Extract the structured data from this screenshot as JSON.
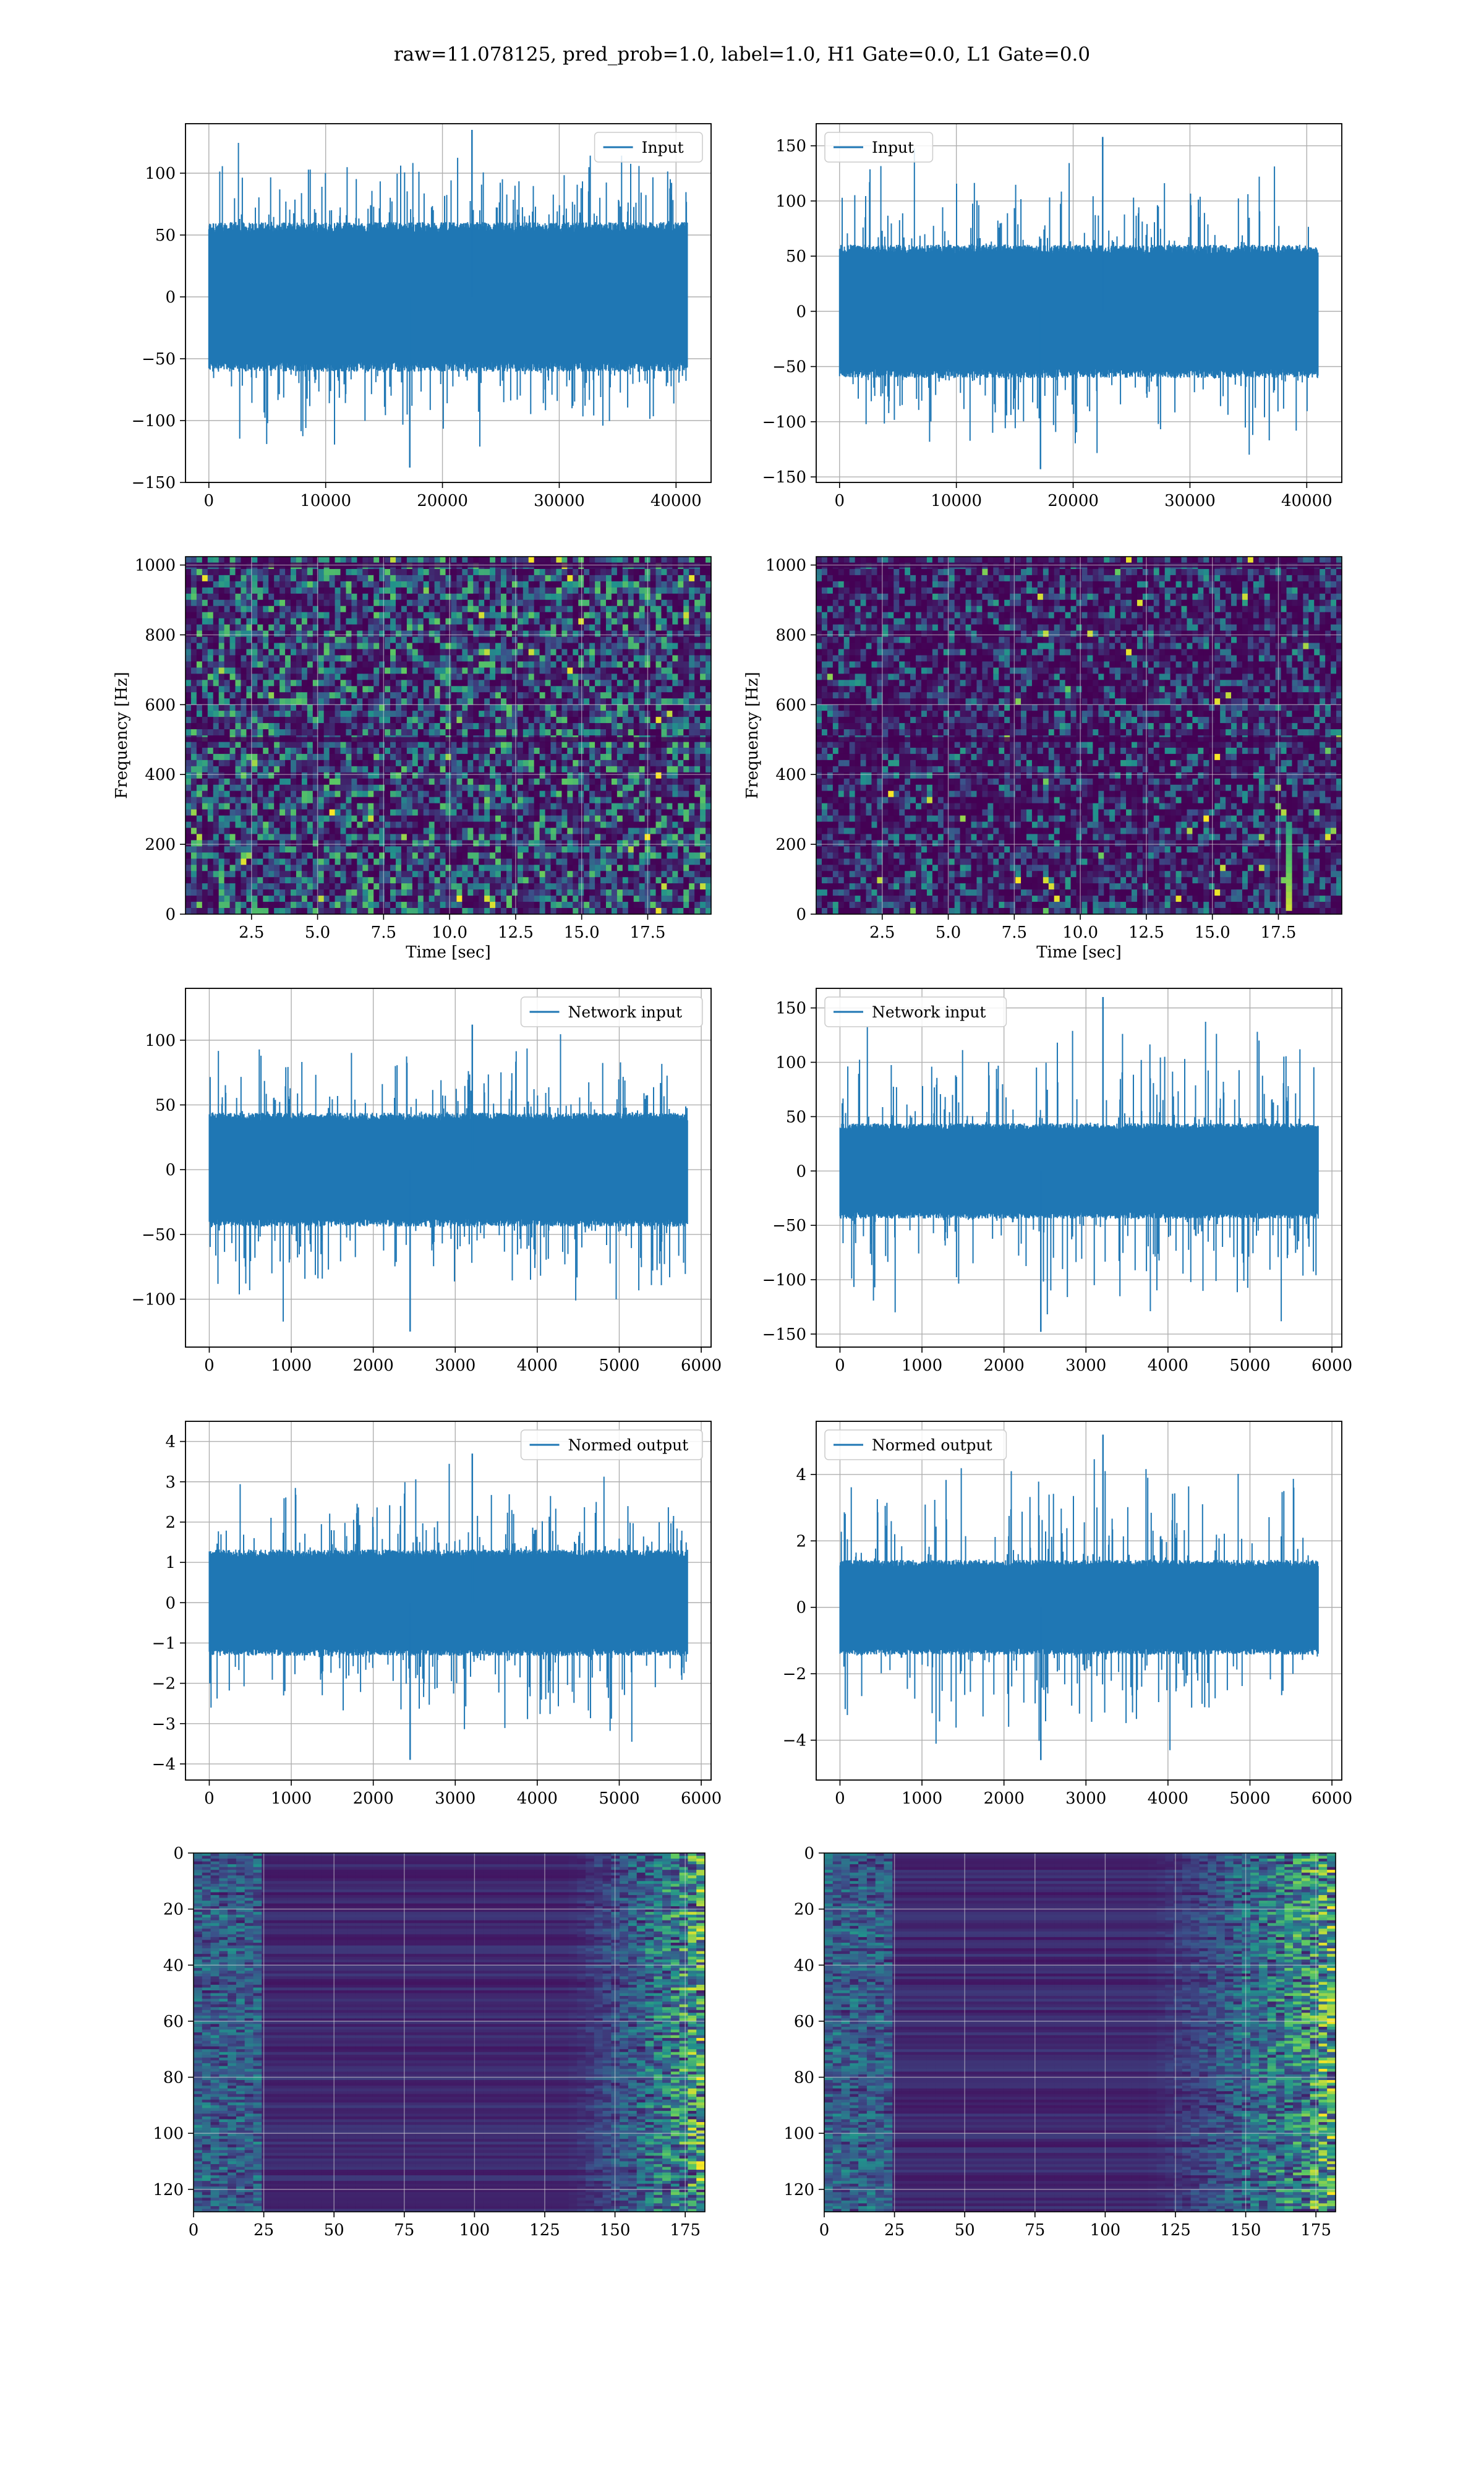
{
  "figure": {
    "suptitle": "raw=11.078125, pred_prob=1.0, label=1.0, H1 Gate=0.0, L1 Gate=0.0"
  },
  "colors": {
    "line": "#1f77b4",
    "grid": "#b0b0b0",
    "viridis_low": "#440154",
    "viridis_mid": "#21918c",
    "viridis_high": "#fde725"
  },
  "chart_data": [
    {
      "id": "input_h1",
      "type": "line",
      "title": "",
      "series": [
        {
          "name": "Input"
        }
      ],
      "legend": "top-right",
      "x": {
        "min": 0,
        "max": 40960,
        "view": [
          -2000,
          43000
        ],
        "ticks": [
          0,
          10000,
          20000,
          30000,
          40000
        ]
      },
      "y": {
        "view": [
          -150,
          140
        ],
        "ticks": [
          -150,
          -100,
          -50,
          0,
          50,
          100
        ]
      },
      "summary": {
        "band_low": -55,
        "band_high": 55,
        "min": -138,
        "max": 135,
        "samples_shown": "noise-like strain, 40960 samples"
      },
      "grid": true
    },
    {
      "id": "input_l1",
      "type": "line",
      "title": "",
      "series": [
        {
          "name": "Input"
        }
      ],
      "legend": "top-left",
      "x": {
        "min": 0,
        "max": 40960,
        "view": [
          -2000,
          43000
        ],
        "ticks": [
          0,
          10000,
          20000,
          30000,
          40000
        ]
      },
      "y": {
        "view": [
          -155,
          170
        ],
        "ticks": [
          -150,
          -100,
          -50,
          0,
          50,
          100,
          150
        ]
      },
      "summary": {
        "band_low": -55,
        "band_high": 55,
        "min": -143,
        "max": 158
      },
      "grid": true
    },
    {
      "id": "spec_h1",
      "type": "heatmap",
      "title": "",
      "xlabel": "Time [sec]",
      "ylabel": "Frequency [Hz]",
      "x": {
        "view": [
          0,
          19.9
        ],
        "ticks": [
          2.5,
          5.0,
          7.5,
          10.0,
          12.5,
          15.0,
          17.5
        ],
        "tick_labels": [
          "2.5",
          "5.0",
          "7.5",
          "10.0",
          "12.5",
          "15.0",
          "17.5"
        ]
      },
      "y": {
        "view": [
          0,
          1024
        ],
        "ticks": [
          0,
          200,
          400,
          600,
          800,
          1000
        ]
      },
      "colormap": "viridis",
      "grid": true
    },
    {
      "id": "spec_l1",
      "type": "heatmap",
      "title": "",
      "xlabel": "Time [sec]",
      "ylabel": "Frequency [Hz]",
      "x": {
        "view": [
          0,
          19.9
        ],
        "ticks": [
          2.5,
          5.0,
          7.5,
          10.0,
          12.5,
          15.0,
          17.5
        ],
        "tick_labels": [
          "2.5",
          "5.0",
          "7.5",
          "10.0",
          "12.5",
          "15.0",
          "17.5"
        ]
      },
      "y": {
        "view": [
          0,
          1024
        ],
        "ticks": [
          0,
          200,
          400,
          600,
          800,
          1000
        ]
      },
      "colormap": "viridis",
      "grid": true,
      "annotations": [
        {
          "text": "",
          "x": 17.9,
          "y": 30
        }
      ]
    },
    {
      "id": "net_h1",
      "type": "line",
      "title": "",
      "series": [
        {
          "name": "Network input"
        }
      ],
      "legend": "top-right",
      "x": {
        "min": 0,
        "max": 5832,
        "view": [
          -290,
          6120
        ],
        "ticks": [
          0,
          1000,
          2000,
          3000,
          4000,
          5000,
          6000
        ]
      },
      "y": {
        "view": [
          -137,
          140
        ],
        "ticks": [
          -100,
          -50,
          0,
          50,
          100
        ]
      },
      "summary": {
        "band_low": -40,
        "band_high": 40,
        "min": -125,
        "max": 112
      },
      "grid": true
    },
    {
      "id": "net_l1",
      "type": "line",
      "title": "",
      "series": [
        {
          "name": "Network input"
        }
      ],
      "legend": "top-left",
      "x": {
        "min": 0,
        "max": 5832,
        "view": [
          -290,
          6120
        ],
        "ticks": [
          0,
          1000,
          2000,
          3000,
          4000,
          5000,
          6000
        ]
      },
      "y": {
        "view": [
          -162,
          168
        ],
        "ticks": [
          -150,
          -100,
          -50,
          0,
          50,
          100,
          150
        ]
      },
      "summary": {
        "band_low": -40,
        "band_high": 40,
        "min": -148,
        "max": 160
      },
      "grid": true
    },
    {
      "id": "norm_h1",
      "type": "line",
      "title": "",
      "series": [
        {
          "name": "Normed output"
        }
      ],
      "legend": "top-right",
      "x": {
        "min": 0,
        "max": 5832,
        "view": [
          -290,
          6120
        ],
        "ticks": [
          0,
          1000,
          2000,
          3000,
          4000,
          5000,
          6000
        ]
      },
      "y": {
        "view": [
          -4.4,
          4.5
        ],
        "ticks": [
          -4,
          -3,
          -2,
          -1,
          0,
          1,
          2,
          3,
          4
        ]
      },
      "summary": {
        "band_low": -1.2,
        "band_high": 1.2,
        "min": -3.9,
        "max": 3.7
      },
      "grid": true
    },
    {
      "id": "norm_l1",
      "type": "line",
      "title": "",
      "series": [
        {
          "name": "Normed output"
        }
      ],
      "legend": "top-left",
      "x": {
        "min": 0,
        "max": 5832,
        "view": [
          -290,
          6120
        ],
        "ticks": [
          0,
          1000,
          2000,
          3000,
          4000,
          5000,
          6000
        ]
      },
      "y": {
        "view": [
          -5.2,
          5.6
        ],
        "ticks": [
          -4,
          -2,
          0,
          2,
          4
        ]
      },
      "summary": {
        "band_low": -1.3,
        "band_high": 1.3,
        "min": -4.6,
        "max": 5.2
      },
      "grid": true
    },
    {
      "id": "feat_h1",
      "type": "heatmap",
      "title": "",
      "x": {
        "view": [
          0,
          182
        ],
        "ticks": [
          0,
          25,
          50,
          75,
          100,
          125,
          150,
          175
        ]
      },
      "y": {
        "view": [
          0,
          128
        ],
        "ticks": [
          0,
          20,
          40,
          60,
          80,
          100,
          120
        ],
        "inverted": true
      },
      "colormap": "viridis",
      "grid": true
    },
    {
      "id": "feat_l1",
      "type": "heatmap",
      "title": "",
      "x": {
        "view": [
          0,
          182
        ],
        "ticks": [
          0,
          25,
          50,
          75,
          100,
          125,
          150,
          175
        ]
      },
      "y": {
        "view": [
          0,
          128
        ],
        "ticks": [
          0,
          20,
          40,
          60,
          80,
          100,
          120
        ],
        "inverted": true
      },
      "colormap": "viridis",
      "grid": true
    }
  ]
}
